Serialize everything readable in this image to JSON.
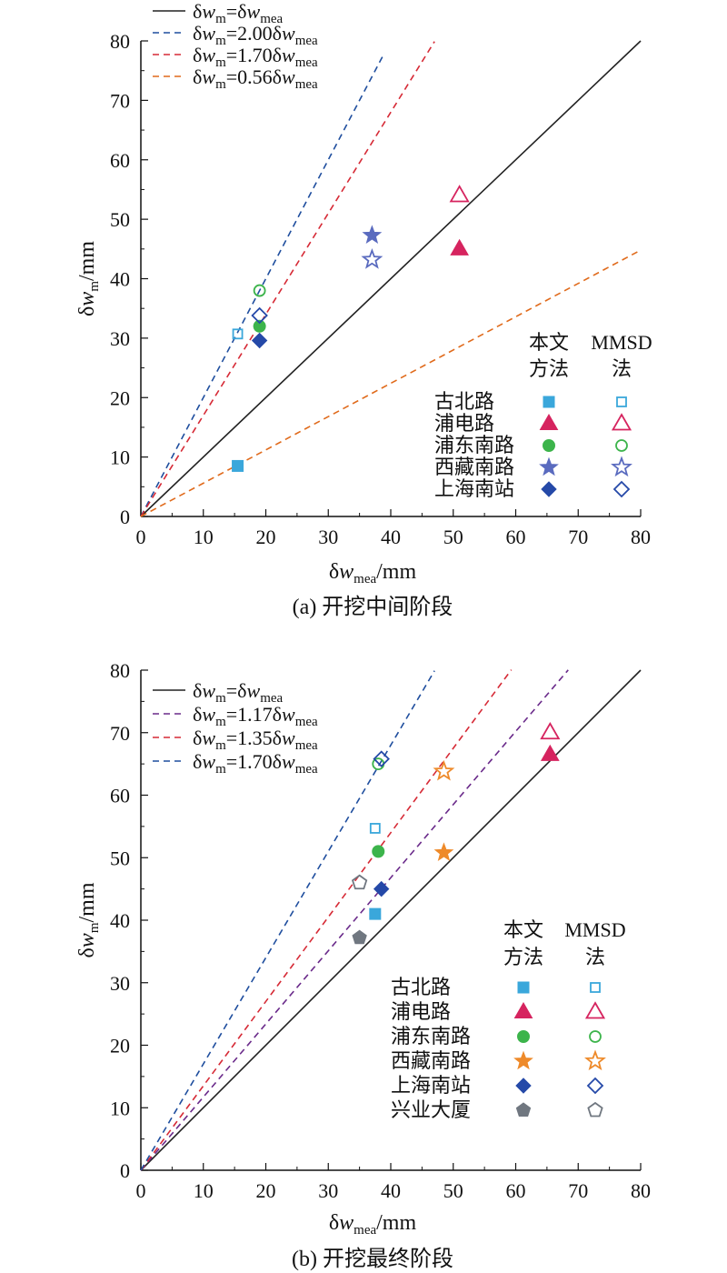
{
  "chart_data": [
    {
      "type": "scatter",
      "caption": "(a) 开挖中间阶段",
      "xlabel": "δw_mea/mm",
      "ylabel": "δw_m/mm",
      "xlim": [
        0,
        80
      ],
      "ylim": [
        0,
        80
      ],
      "xticks": [
        0,
        10,
        20,
        30,
        40,
        50,
        60,
        70,
        80
      ],
      "yticks": [
        0,
        10,
        20,
        30,
        40,
        50,
        60,
        70,
        80
      ],
      "lines": [
        {
          "label": "δw_m=δw_mea",
          "slope": 1.0,
          "style": "solid",
          "color": "#222222",
          "x_end": 80
        },
        {
          "label": "δw_m=2.00δw_mea",
          "slope": 2.0,
          "style": "dashed",
          "color": "#1f4e9e",
          "x_end": 39
        },
        {
          "label": "δw_m=1.70δw_mea",
          "slope": 1.7,
          "style": "dashed",
          "color": "#d62a36",
          "x_end": 47
        },
        {
          "label": "δw_m=0.56δw_mea",
          "slope": 0.56,
          "style": "dashed",
          "color": "#e06a1b",
          "x_end": 80
        }
      ],
      "legend_headers": [
        "本文\n方法",
        "MMSD\n法"
      ],
      "series": [
        {
          "name": "古北路",
          "shape": "square",
          "color": "#3aa7db",
          "this_method": [
            15.5,
            8.5
          ],
          "mmsd": [
            15.5,
            30.7
          ]
        },
        {
          "name": "浦电路",
          "shape": "triangle",
          "color": "#d6245f",
          "this_method": [
            51.0,
            45.0
          ],
          "mmsd": [
            51.0,
            54.0
          ]
        },
        {
          "name": "浦东南路",
          "shape": "circle",
          "color": "#3cb44b",
          "this_method": [
            19.0,
            32.0
          ],
          "mmsd": [
            19.0,
            38.0
          ]
        },
        {
          "name": "西藏南路",
          "shape": "star",
          "color": "#5a6bbf",
          "this_method": [
            37.0,
            47.3
          ],
          "mmsd": [
            37.0,
            43.2
          ]
        },
        {
          "name": "上海南站",
          "shape": "diamond",
          "color": "#2549a8",
          "this_method": [
            19.0,
            29.6
          ],
          "mmsd": [
            19.0,
            33.8
          ]
        }
      ]
    },
    {
      "type": "scatter",
      "caption": "(b) 开挖最终阶段",
      "xlabel": "δw_mea/mm",
      "ylabel": "δw_m/mm",
      "xlim": [
        0,
        80
      ],
      "ylim": [
        0,
        80
      ],
      "xticks": [
        0,
        10,
        20,
        30,
        40,
        50,
        60,
        70,
        80
      ],
      "yticks": [
        0,
        10,
        20,
        30,
        40,
        50,
        60,
        70,
        80
      ],
      "lines": [
        {
          "label": "δw_m=δw_mea",
          "slope": 1.0,
          "style": "solid",
          "color": "#222222",
          "x_end": 80
        },
        {
          "label": "δw_m=1.17δw_mea",
          "slope": 1.17,
          "style": "dashed",
          "color": "#6a2a8a",
          "x_end": 68.4
        },
        {
          "label": "δw_m=1.35δw_mea",
          "slope": 1.35,
          "style": "dashed",
          "color": "#d62a36",
          "x_end": 59.3
        },
        {
          "label": "δw_m=1.70δw_mea",
          "slope": 1.7,
          "style": "dashed",
          "color": "#1f4e9e",
          "x_end": 47
        }
      ],
      "legend_headers": [
        "本文\n方法",
        "MMSD\n法"
      ],
      "series": [
        {
          "name": "古北路",
          "shape": "square",
          "color": "#3aa7db",
          "this_method": [
            37.5,
            41.0
          ],
          "mmsd": [
            37.5,
            54.7
          ]
        },
        {
          "name": "浦电路",
          "shape": "triangle",
          "color": "#d6245f",
          "this_method": [
            65.5,
            66.5
          ],
          "mmsd": [
            65.5,
            70.0
          ]
        },
        {
          "name": "浦东南路",
          "shape": "circle",
          "color": "#3cb44b",
          "this_method": [
            38.0,
            51.0
          ],
          "mmsd": [
            38.0,
            65.0
          ]
        },
        {
          "name": "西藏南路",
          "shape": "star",
          "color": "#ee8a2a",
          "this_method": [
            48.5,
            50.8
          ],
          "mmsd": [
            48.5,
            63.8
          ]
        },
        {
          "name": "上海南站",
          "shape": "diamond",
          "color": "#2549a8",
          "this_method": [
            38.5,
            45.0
          ],
          "mmsd": [
            38.5,
            65.8
          ]
        },
        {
          "name": "兴业大厦",
          "shape": "pentagon",
          "color": "#707780",
          "this_method": [
            35.0,
            37.2
          ],
          "mmsd": [
            35.0,
            46.0
          ]
        }
      ]
    }
  ]
}
